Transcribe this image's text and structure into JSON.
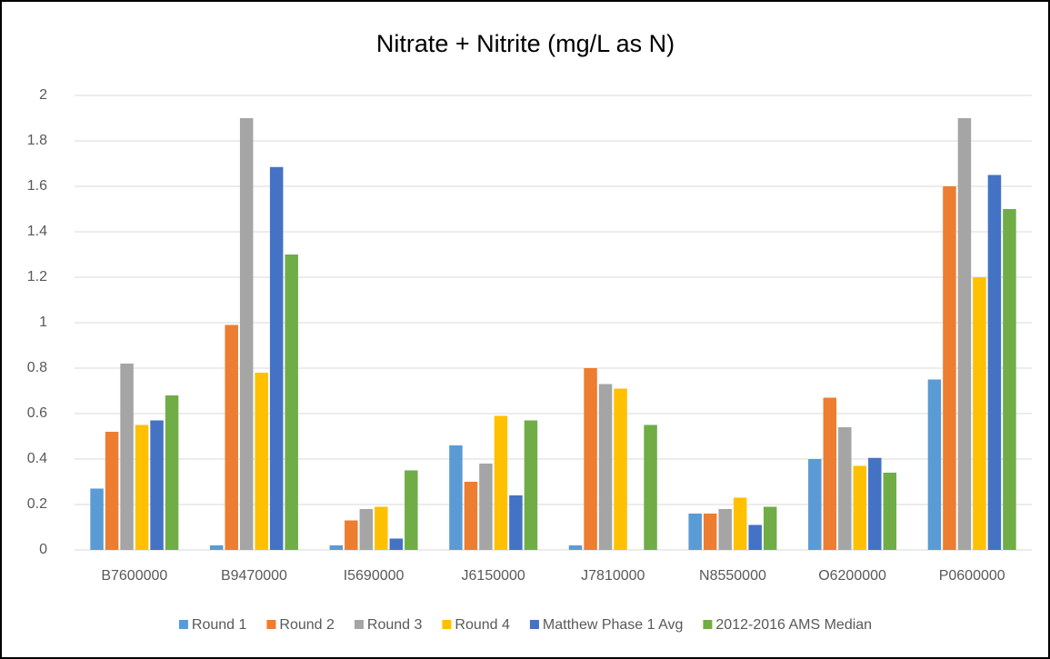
{
  "chart_data": {
    "type": "bar",
    "title": "Nitrate + Nitrite (mg/L as N)",
    "categories": [
      "B7600000",
      "B9470000",
      "I5690000",
      "J6150000",
      "J7810000",
      "N8550000",
      "O6200000",
      "P0600000"
    ],
    "series": [
      {
        "name": "Round 1",
        "color": "#5b9bd5",
        "values": [
          0.27,
          0.02,
          0.02,
          0.46,
          0.02,
          0.16,
          0.4,
          0.75
        ]
      },
      {
        "name": "Round 2",
        "color": "#ed7d31",
        "values": [
          0.52,
          0.99,
          0.13,
          0.3,
          0.8,
          0.16,
          0.67,
          1.6
        ]
      },
      {
        "name": "Round 3",
        "color": "#a5a5a5",
        "values": [
          0.82,
          1.9,
          0.18,
          0.38,
          0.73,
          0.18,
          0.54,
          1.9
        ]
      },
      {
        "name": "Round 4",
        "color": "#ffc000",
        "values": [
          0.55,
          0.78,
          0.19,
          0.59,
          0.71,
          0.23,
          0.37,
          1.2
        ]
      },
      {
        "name": "Matthew Phase 1 Avg",
        "color": "#4472c4",
        "values": [
          0.57,
          1.685,
          0.05,
          0.24,
          null,
          0.11,
          0.405,
          1.65
        ]
      },
      {
        "name": "2012-2016 AMS Median",
        "color": "#70ad47",
        "values": [
          0.68,
          1.3,
          0.35,
          0.57,
          0.55,
          0.19,
          0.34,
          1.5
        ]
      }
    ],
    "ylim": [
      0,
      2
    ],
    "yticks": [
      0,
      0.2,
      0.4,
      0.6,
      0.8,
      1,
      1.2,
      1.4,
      1.6,
      1.8,
      2
    ],
    "grid": true,
    "legend": "bottom"
  }
}
